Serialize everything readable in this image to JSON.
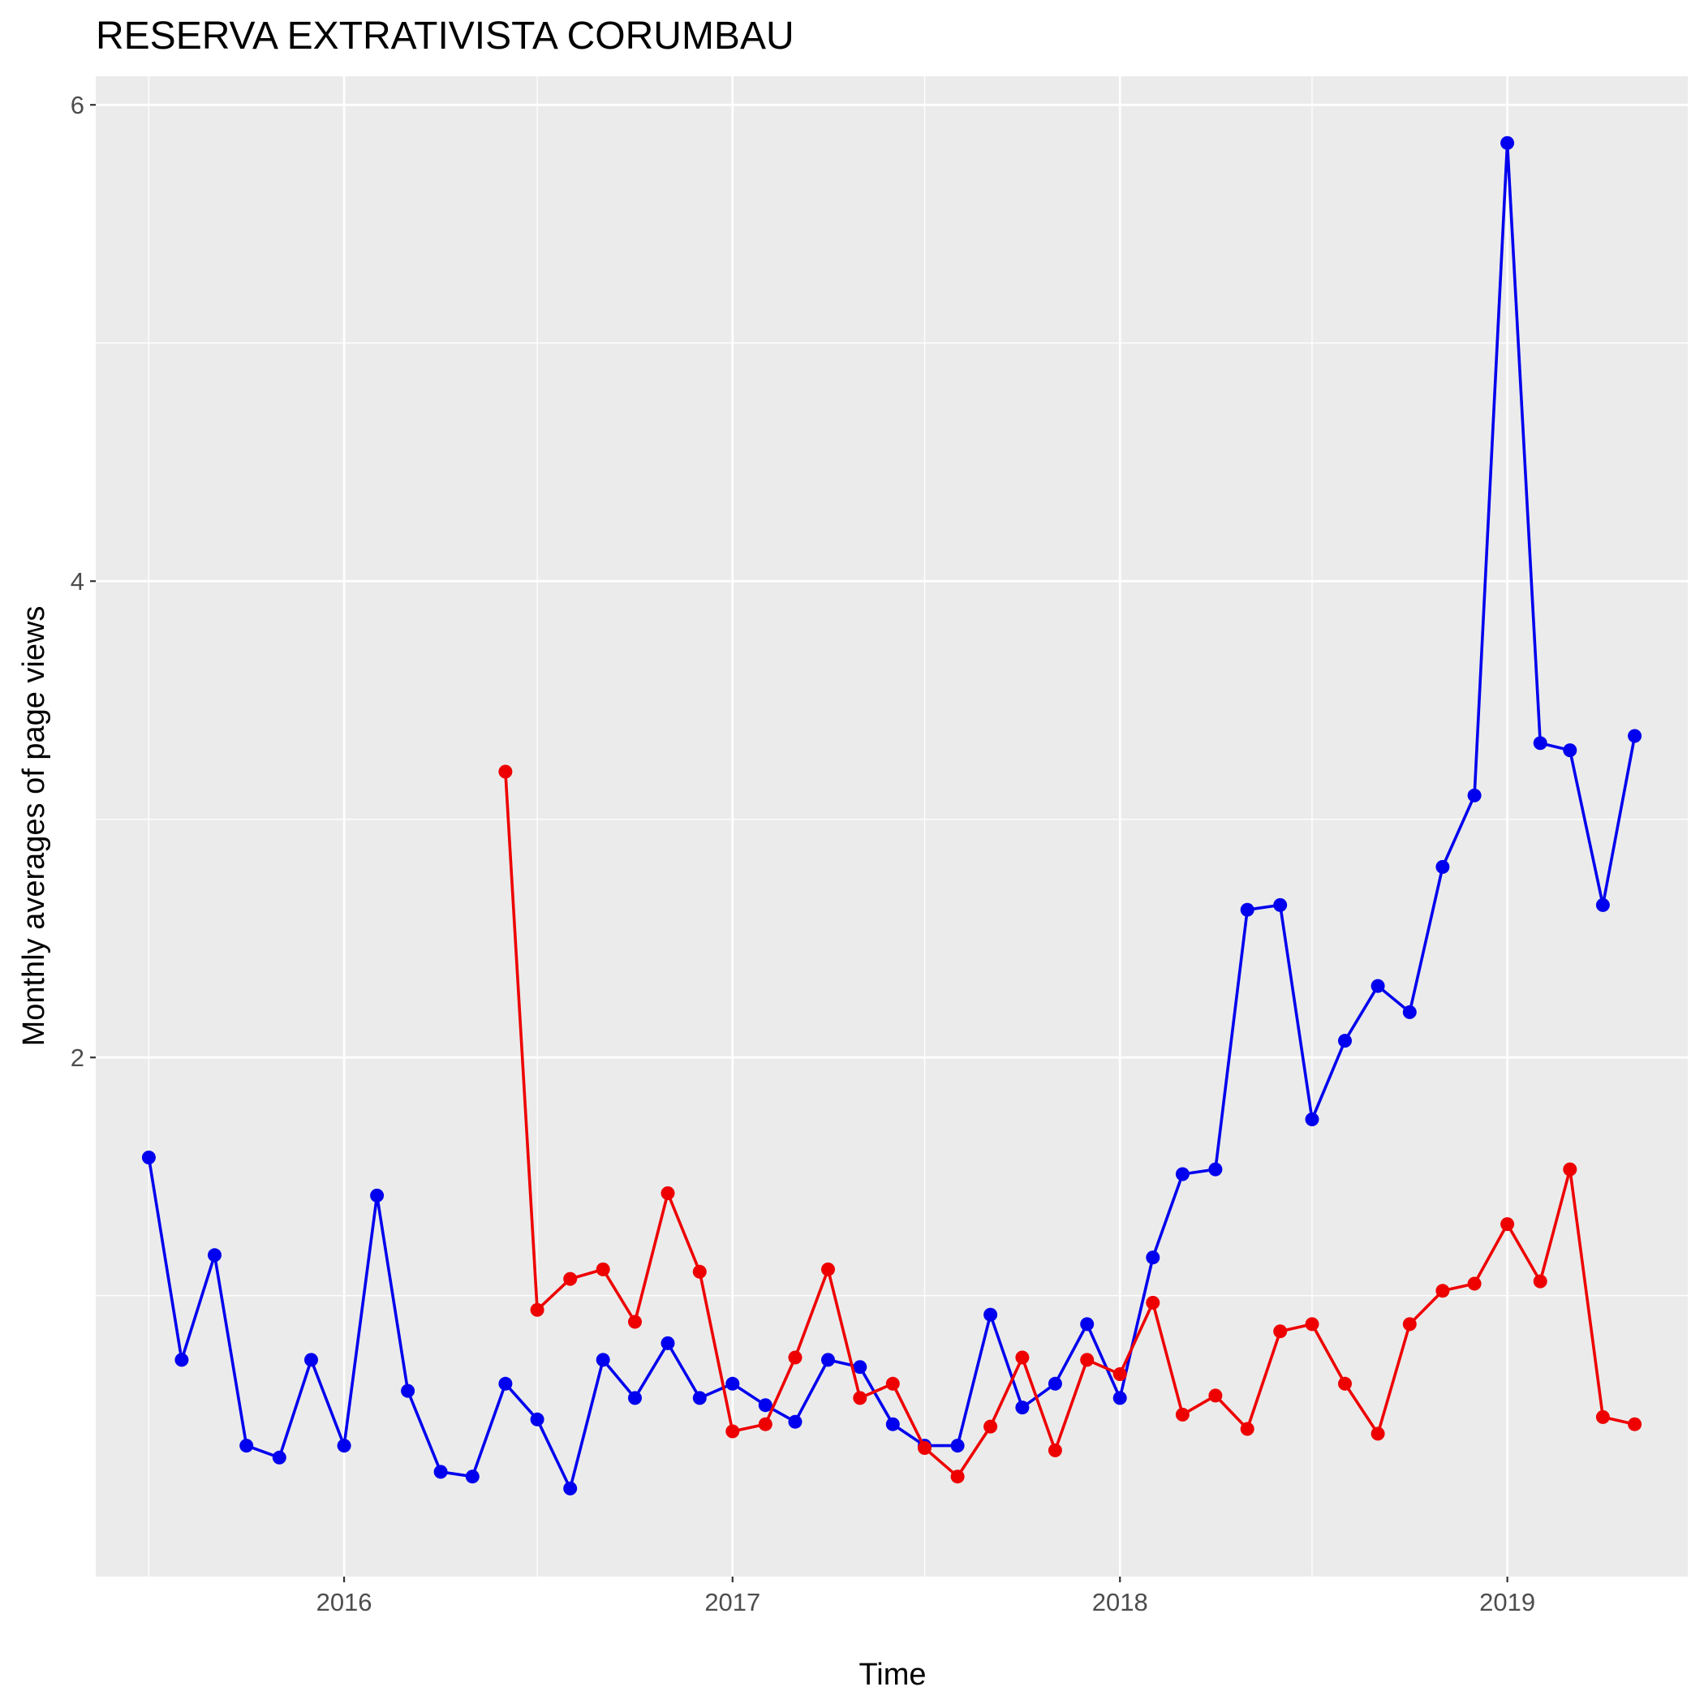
{
  "chart_data": {
    "type": "line",
    "title": "RESERVA EXTRATIVISTA CORUMBAU",
    "xlabel": "Time",
    "ylabel": "Monthly averages of page views",
    "x_ticks": [
      "2016",
      "2017",
      "2018",
      "2019"
    ],
    "y_ticks": [
      "2",
      "4",
      "6"
    ],
    "xlim": [
      "2015-05-12",
      "2019-06-20"
    ],
    "ylim": [
      -0.18,
      6.12
    ],
    "grid": true,
    "legend": "none",
    "x": [
      "2015-07-01",
      "2015-08-01",
      "2015-09-01",
      "2015-10-01",
      "2015-11-01",
      "2015-12-01",
      "2016-01-01",
      "2016-02-01",
      "2016-03-01",
      "2016-04-01",
      "2016-05-01",
      "2016-06-01",
      "2016-07-01",
      "2016-08-01",
      "2016-09-01",
      "2016-10-01",
      "2016-11-01",
      "2016-12-01",
      "2017-01-01",
      "2017-02-01",
      "2017-03-01",
      "2017-04-01",
      "2017-05-01",
      "2017-06-01",
      "2017-07-01",
      "2017-08-01",
      "2017-09-01",
      "2017-10-01",
      "2017-11-01",
      "2017-12-01",
      "2018-01-01",
      "2018-02-01",
      "2018-03-01",
      "2018-04-01",
      "2018-05-01",
      "2018-06-01",
      "2018-07-01",
      "2018-08-01",
      "2018-09-01",
      "2018-10-01",
      "2018-11-01",
      "2018-12-01",
      "2019-01-01",
      "2019-02-01",
      "2019-03-01",
      "2019-04-01",
      "2019-05-01"
    ],
    "series": [
      {
        "color": "#0000ee",
        "values": [
          1.58,
          0.73,
          1.17,
          0.37,
          0.32,
          0.73,
          0.37,
          1.42,
          0.6,
          0.26,
          0.24,
          0.63,
          0.48,
          0.19,
          0.73,
          0.57,
          0.8,
          0.57,
          0.63,
          0.54,
          0.47,
          0.73,
          0.7,
          0.46,
          0.37,
          0.37,
          0.92,
          0.53,
          0.63,
          0.88,
          0.57,
          1.16,
          1.51,
          1.53,
          2.62,
          2.64,
          1.74,
          2.07,
          2.3,
          2.19,
          2.8,
          3.1,
          5.84,
          3.32,
          3.29,
          2.64,
          3.35
        ]
      },
      {
        "color": "#ee0000",
        "values": [
          null,
          null,
          null,
          null,
          null,
          null,
          null,
          null,
          null,
          null,
          null,
          3.2,
          0.94,
          1.07,
          1.11,
          0.89,
          1.43,
          1.1,
          0.43,
          0.46,
          0.74,
          1.11,
          0.57,
          0.63,
          0.36,
          0.24,
          0.45,
          0.74,
          0.35,
          0.73,
          0.67,
          0.97,
          0.5,
          0.58,
          0.44,
          0.85,
          0.88,
          0.63,
          0.42,
          0.88,
          1.02,
          1.05,
          1.3,
          1.06,
          1.53,
          0.49,
          0.46
        ]
      }
    ]
  }
}
